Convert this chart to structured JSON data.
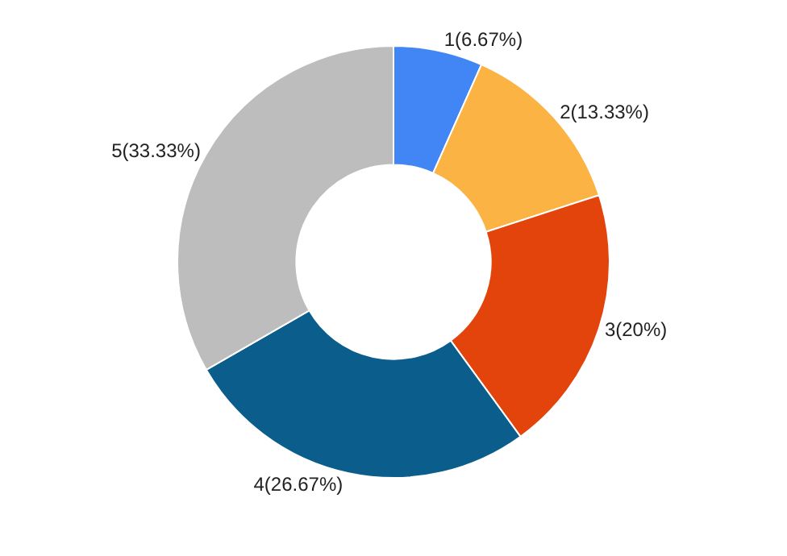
{
  "chart_data": {
    "type": "donut",
    "categories": [
      "1(6.67%)",
      "2(13.33%)",
      "3(20%)",
      "4(26.67%)",
      "5(33.33%)"
    ],
    "values": [
      6.67,
      13.33,
      20,
      26.67,
      33.33
    ],
    "colors": [
      "#4285f4",
      "#fbb444",
      "#e2440c",
      "#0b5e8c",
      "#bdbdbd"
    ],
    "legend": false
  }
}
